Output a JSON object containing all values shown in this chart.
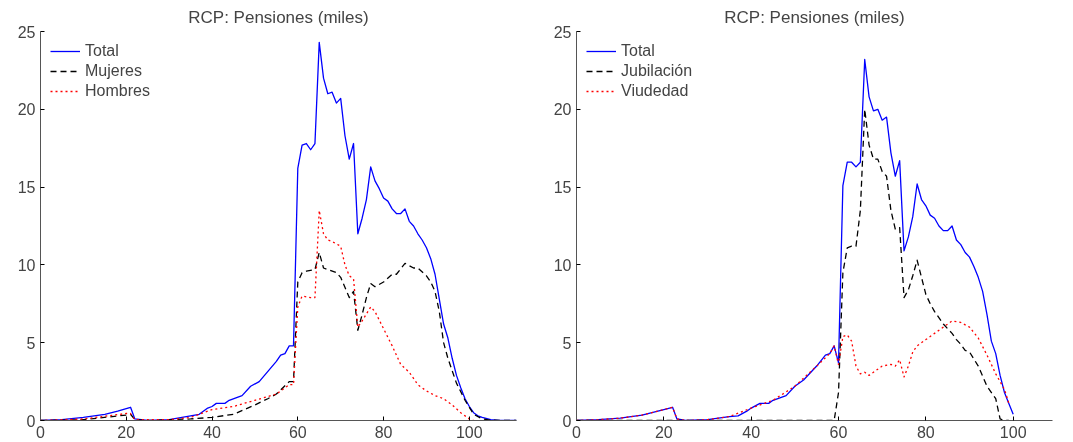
{
  "chart_data": [
    {
      "type": "line",
      "title": "RCP: Pensiones (miles)",
      "xlim": [
        0,
        111
      ],
      "ylim": [
        0,
        25
      ],
      "xticks": [
        0,
        20,
        40,
        60,
        80,
        100
      ],
      "yticks": [
        0,
        5,
        10,
        15,
        20,
        25
      ],
      "grid": false,
      "legend": "top left",
      "marker": "none",
      "series": [
        {
          "name": "Total",
          "color": "#0000ff",
          "line_style": "solid",
          "x": [
            0,
            5,
            10,
            15,
            18,
            21,
            22,
            25,
            30,
            35,
            37,
            39,
            40,
            41,
            43,
            44,
            47,
            49,
            51,
            55,
            56,
            57,
            58,
            59,
            60,
            61,
            62,
            63,
            64,
            65,
            66,
            67,
            68,
            69,
            70,
            71,
            72,
            73,
            74,
            75,
            76,
            77,
            78,
            79,
            80,
            81,
            82,
            83,
            84,
            85,
            86,
            87,
            88,
            89,
            90,
            91,
            92,
            93,
            94,
            95,
            96,
            97,
            98,
            99,
            100,
            101,
            102,
            103,
            105,
            107,
            111
          ],
          "values": [
            0,
            0.05,
            0.2,
            0.4,
            0.6,
            0.85,
            0.1,
            0,
            0.05,
            0.3,
            0.4,
            0.8,
            0.9,
            1.1,
            1.1,
            1.3,
            1.6,
            2.2,
            2.5,
            3.8,
            4.2,
            4.3,
            4.8,
            4.8,
            16.2,
            17.7,
            17.8,
            17.4,
            17.8,
            24.3,
            22.0,
            21.0,
            21.1,
            20.4,
            20.7,
            18.3,
            16.8,
            17.8,
            12.0,
            13.0,
            14.2,
            16.3,
            15.4,
            14.9,
            14.3,
            14.1,
            13.6,
            13.3,
            13.3,
            13.6,
            12.8,
            12.5,
            12.0,
            11.6,
            11.1,
            10.4,
            9.4,
            7.8,
            6.2,
            5.3,
            4.0,
            2.9,
            2.1,
            1.4,
            0.9,
            0.5,
            0.3,
            0.2,
            0.05,
            0,
            0
          ]
        },
        {
          "name": "Mujeres",
          "color": "#000000",
          "line_style": "dashed",
          "x": [
            0,
            10,
            20,
            21,
            22,
            25,
            35,
            40,
            45,
            50,
            53,
            55,
            58,
            59,
            60,
            61,
            62,
            64,
            65,
            66,
            67,
            69,
            70,
            72,
            73,
            74,
            75,
            76,
            77,
            78,
            80,
            82,
            83,
            85,
            87,
            88,
            90,
            91,
            92,
            93,
            94,
            95,
            97,
            99,
            101,
            103,
            105,
            111
          ],
          "values": [
            0,
            0.05,
            0.35,
            0.4,
            0.05,
            0,
            0.1,
            0.2,
            0.4,
            1.0,
            1.4,
            1.7,
            2.5,
            2.5,
            8.9,
            9.5,
            9.6,
            9.7,
            10.8,
            9.8,
            9.7,
            9.5,
            9.2,
            7.9,
            8.3,
            5.8,
            6.8,
            7.9,
            8.8,
            8.6,
            8.9,
            9.4,
            9.4,
            10.1,
            9.8,
            9.8,
            9.3,
            8.9,
            8.3,
            7.0,
            5.0,
            4.0,
            2.4,
            1.3,
            0.4,
            0.1,
            0.02,
            0
          ]
        },
        {
          "name": "Hombres",
          "color": "#ff0000",
          "line_style": "dotted",
          "x": [
            0,
            10,
            20,
            21,
            22,
            30,
            35,
            38,
            40,
            45,
            50,
            55,
            58,
            59,
            60,
            61,
            63,
            64,
            65,
            66,
            67,
            68,
            70,
            71,
            72,
            73,
            74,
            75,
            77,
            78,
            80,
            82,
            84,
            86,
            88,
            90,
            92,
            94,
            96,
            98,
            100,
            101
          ],
          "values": [
            0,
            0.1,
            0.45,
            0.45,
            0.05,
            0.05,
            0.2,
            0.5,
            0.7,
            0.9,
            1.3,
            1.7,
            2.3,
            2.3,
            7.3,
            8.0,
            7.9,
            7.9,
            13.5,
            12.0,
            11.6,
            11.5,
            11.2,
            10.0,
            9.3,
            9.1,
            6.0,
            6.4,
            7.3,
            7.0,
            5.9,
            4.8,
            3.6,
            3.1,
            2.3,
            1.9,
            1.6,
            1.4,
            1.0,
            0.5,
            0.1,
            0
          ]
        }
      ]
    },
    {
      "type": "line",
      "title": "RCP: Pensiones (miles)",
      "xlim": [
        0,
        109
      ],
      "ylim": [
        0,
        25
      ],
      "xticks": [
        0,
        20,
        40,
        60,
        80,
        100
      ],
      "yticks": [
        0,
        5,
        10,
        15,
        20,
        25
      ],
      "grid": false,
      "legend": "top left",
      "marker": "none",
      "series": [
        {
          "name": "Total",
          "color": "#0000ff",
          "line_style": "solid",
          "x": [
            0,
            5,
            10,
            15,
            20,
            22,
            23,
            25,
            30,
            35,
            37,
            39,
            40,
            42,
            44,
            45,
            48,
            50,
            52,
            55,
            57,
            58,
            59,
            60,
            61,
            62,
            63,
            64,
            65,
            66,
            67,
            68,
            69,
            70,
            71,
            72,
            73,
            74,
            75,
            76,
            77,
            78,
            79,
            80,
            81,
            82,
            83,
            84,
            85,
            86,
            87,
            88,
            89,
            90,
            91,
            92,
            93,
            94,
            95,
            96,
            97,
            98,
            99,
            100
          ],
          "values": [
            0,
            0.05,
            0.15,
            0.35,
            0.7,
            0.85,
            0.1,
            0,
            0.05,
            0.25,
            0.3,
            0.6,
            0.8,
            1.1,
            1.1,
            1.3,
            1.6,
            2.2,
            2.6,
            3.5,
            4.2,
            4.3,
            4.8,
            3.7,
            15.1,
            16.6,
            16.6,
            16.3,
            16.6,
            23.2,
            20.8,
            19.9,
            20.0,
            19.3,
            19.5,
            17.2,
            15.7,
            16.7,
            10.9,
            11.8,
            13.1,
            15.2,
            14.2,
            13.8,
            13.2,
            13.0,
            12.5,
            12.2,
            12.2,
            12.5,
            11.6,
            11.3,
            10.8,
            10.5,
            9.9,
            9.2,
            8.3,
            6.8,
            5.1,
            4.3,
            2.9,
            1.8,
            1.1,
            0.4
          ]
        },
        {
          "name": "Jubilación",
          "color": "#000000",
          "line_style": "dashed",
          "x": [
            0,
            58,
            59,
            60,
            61,
            62,
            63,
            64,
            65,
            66,
            67,
            68,
            69,
            70,
            71,
            72,
            73,
            74,
            75,
            76,
            77,
            78,
            79,
            80,
            81,
            82,
            84,
            86,
            87,
            88,
            89,
            90,
            92,
            94,
            96,
            97,
            98,
            99
          ],
          "values": [
            0,
            0,
            0,
            1.8,
            9.5,
            11.1,
            11.2,
            11.2,
            13.5,
            20.0,
            17.7,
            16.8,
            16.8,
            16.0,
            15.7,
            13.5,
            12.3,
            12.4,
            7.9,
            8.4,
            9.3,
            10.3,
            9.2,
            8.1,
            7.5,
            7.0,
            6.2,
            5.6,
            5.2,
            4.9,
            4.5,
            4.4,
            3.5,
            2.2,
            1.4,
            0.1,
            0,
            0
          ]
        },
        {
          "name": "Viudedad",
          "color": "#ff0000",
          "line_style": "dotted",
          "x": [
            0,
            5,
            10,
            15,
            20,
            22,
            23,
            25,
            30,
            35,
            40,
            45,
            50,
            55,
            58,
            59,
            60,
            61,
            62,
            63,
            64,
            65,
            66,
            67,
            68,
            70,
            72,
            73,
            74,
            75,
            76,
            77,
            78,
            80,
            82,
            84,
            86,
            88,
            90,
            92,
            94,
            96,
            98,
            99
          ],
          "values": [
            0,
            0.05,
            0.15,
            0.35,
            0.7,
            0.85,
            0.1,
            0,
            0.05,
            0.25,
            0.8,
            1.3,
            2.2,
            3.5,
            4.3,
            4.8,
            3.6,
            5.4,
            5.5,
            5.1,
            3.5,
            3.0,
            3.1,
            2.9,
            3.1,
            3.5,
            3.6,
            3.5,
            3.9,
            2.8,
            3.5,
            4.4,
            4.8,
            5.2,
            5.6,
            6.0,
            6.4,
            6.3,
            6.0,
            5.3,
            4.2,
            3.0,
            2.0,
            1.1
          ]
        }
      ]
    }
  ]
}
